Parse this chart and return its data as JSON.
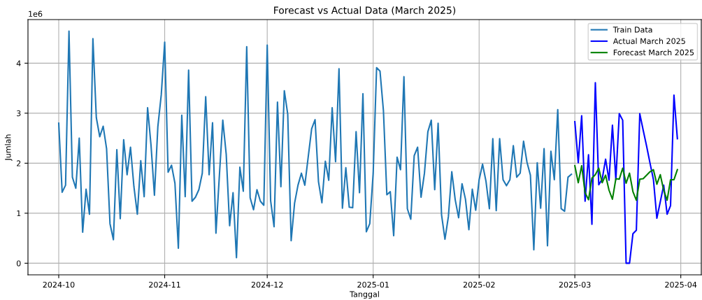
{
  "chart_data": {
    "type": "line",
    "title": "Forecast vs Actual Data (March 2025)",
    "xlabel": "Tanggal",
    "ylabel": "Jumlah",
    "annotations": [
      "1e6"
    ],
    "xlim": [
      "2024-09-22",
      "2025-04-07"
    ],
    "xticks": [
      {
        "value": "2024-10-01",
        "label": "2024-10"
      },
      {
        "value": "2024-11-01",
        "label": "2024-11"
      },
      {
        "value": "2024-12-01",
        "label": "2024-12"
      },
      {
        "value": "2025-01-01",
        "label": "2025-01"
      },
      {
        "value": "2025-02-01",
        "label": "2025-02"
      },
      {
        "value": "2025-03-01",
        "label": "2025-03"
      },
      {
        "value": "2025-04-01",
        "label": "2025-04"
      }
    ],
    "ylim": [
      -0.232,
      4.872
    ],
    "yticks": [
      0,
      1,
      2,
      3,
      4
    ],
    "grid": true,
    "legend": "top right",
    "series": [
      {
        "name": "Train Data",
        "color": "#1f77b4",
        "x": [
          "2024-10-01",
          "2024-10-02",
          "2024-10-03",
          "2024-10-04",
          "2024-10-05",
          "2024-10-06",
          "2024-10-07",
          "2024-10-08",
          "2024-10-09",
          "2024-10-10",
          "2024-10-11",
          "2024-10-12",
          "2024-10-13",
          "2024-10-14",
          "2024-10-15",
          "2024-10-16",
          "2024-10-17",
          "2024-10-18",
          "2024-10-19",
          "2024-10-20",
          "2024-10-21",
          "2024-10-22",
          "2024-10-23",
          "2024-10-24",
          "2024-10-25",
          "2024-10-26",
          "2024-10-27",
          "2024-10-28",
          "2024-10-29",
          "2024-10-30",
          "2024-10-31",
          "2024-11-01",
          "2024-11-02",
          "2024-11-03",
          "2024-11-04",
          "2024-11-05",
          "2024-11-06",
          "2024-11-07",
          "2024-11-08",
          "2024-11-09",
          "2024-11-10",
          "2024-11-11",
          "2024-11-12",
          "2024-11-13",
          "2024-11-14",
          "2024-11-15",
          "2024-11-16",
          "2024-11-17",
          "2024-11-18",
          "2024-11-19",
          "2024-11-20",
          "2024-11-21",
          "2024-11-22",
          "2024-11-23",
          "2024-11-24",
          "2024-11-25",
          "2024-11-26",
          "2024-11-27",
          "2024-11-28",
          "2024-11-29",
          "2024-11-30",
          "2024-12-01",
          "2024-12-02",
          "2024-12-03",
          "2024-12-04",
          "2024-12-05",
          "2024-12-06",
          "2024-12-07",
          "2024-12-08",
          "2024-12-09",
          "2024-12-10",
          "2024-12-11",
          "2024-12-12",
          "2024-12-13",
          "2024-12-14",
          "2024-12-15",
          "2024-12-16",
          "2024-12-17",
          "2024-12-18",
          "2024-12-19",
          "2024-12-20",
          "2024-12-21",
          "2024-12-22",
          "2024-12-23",
          "2024-12-24",
          "2024-12-25",
          "2024-12-26",
          "2024-12-27",
          "2024-12-28",
          "2024-12-29",
          "2024-12-30",
          "2024-12-31",
          "2025-01-01",
          "2025-01-02",
          "2025-01-03",
          "2025-01-04",
          "2025-01-05",
          "2025-01-06",
          "2025-01-07",
          "2025-01-08",
          "2025-01-09",
          "2025-01-10",
          "2025-01-11",
          "2025-01-12",
          "2025-01-13",
          "2025-01-14",
          "2025-01-15",
          "2025-01-16",
          "2025-01-17",
          "2025-01-18",
          "2025-01-19",
          "2025-01-20",
          "2025-01-21",
          "2025-01-22",
          "2025-01-23",
          "2025-01-24",
          "2025-01-25",
          "2025-01-26",
          "2025-01-27",
          "2025-01-28",
          "2025-01-29",
          "2025-01-30",
          "2025-01-31",
          "2025-02-01",
          "2025-02-02",
          "2025-02-03",
          "2025-02-04",
          "2025-02-05",
          "2025-02-06",
          "2025-02-07",
          "2025-02-08",
          "2025-02-09",
          "2025-02-10",
          "2025-02-11",
          "2025-02-12",
          "2025-02-13",
          "2025-02-14",
          "2025-02-15",
          "2025-02-16",
          "2025-02-17",
          "2025-02-18",
          "2025-02-19",
          "2025-02-20",
          "2025-02-21",
          "2025-02-22",
          "2025-02-23",
          "2025-02-24",
          "2025-02-25",
          "2025-02-26",
          "2025-02-27",
          "2025-02-28"
        ],
        "values": [
          2.8,
          1.42,
          1.56,
          4.64,
          1.72,
          1.5,
          2.5,
          0.62,
          1.48,
          0.98,
          4.49,
          2.91,
          2.53,
          2.74,
          2.29,
          0.79,
          0.47,
          2.27,
          0.89,
          2.47,
          1.77,
          2.32,
          1.53,
          0.98,
          2.05,
          1.33,
          3.11,
          2.36,
          1.36,
          2.73,
          3.37,
          4.42,
          1.82,
          1.96,
          1.6,
          0.3,
          2.96,
          1.33,
          3.86,
          1.24,
          1.32,
          1.47,
          1.8,
          3.33,
          1.77,
          2.81,
          0.6,
          1.75,
          2.86,
          2.18,
          0.75,
          1.41,
          0.11,
          1.92,
          1.44,
          4.33,
          1.31,
          1.07,
          1.47,
          1.24,
          1.16,
          4.36,
          1.25,
          0.73,
          3.22,
          1.53,
          3.45,
          2.98,
          0.45,
          1.2,
          1.56,
          1.8,
          1.56,
          2.13,
          2.69,
          2.87,
          1.63,
          1.21,
          2.04,
          1.66,
          3.11,
          2.03,
          3.89,
          1.1,
          1.91,
          1.12,
          1.11,
          2.63,
          1.41,
          3.39,
          0.63,
          0.79,
          1.8,
          3.91,
          3.84,
          3.05,
          1.37,
          1.43,
          0.55,
          2.12,
          1.87,
          3.73,
          1.09,
          0.88,
          2.15,
          2.32,
          1.32,
          1.8,
          2.63,
          2.86,
          1.47,
          2.8,
          0.97,
          0.48,
          0.93,
          1.83,
          1.27,
          0.91,
          1.59,
          1.28,
          0.67,
          1.48,
          1.06,
          1.67,
          1.98,
          1.64,
          1.09,
          2.49,
          1.05,
          2.49,
          1.67,
          1.55,
          1.67,
          2.35,
          1.72,
          1.8,
          2.44,
          2.02,
          1.76,
          0.27,
          2.01,
          1.1,
          2.29,
          0.35,
          2.24,
          1.67,
          3.07,
          1.09,
          1.04,
          1.72,
          1.78
        ]
      },
      {
        "name": "Actual March 2025",
        "color": "#0000ff",
        "x": [
          "2025-03-01",
          "2025-03-02",
          "2025-03-03",
          "2025-03-04",
          "2025-03-05",
          "2025-03-06",
          "2025-03-07",
          "2025-03-08",
          "2025-03-09",
          "2025-03-10",
          "2025-03-11",
          "2025-03-12",
          "2025-03-13",
          "2025-03-14",
          "2025-03-15",
          "2025-03-16",
          "2025-03-17",
          "2025-03-18",
          "2025-03-19",
          "2025-03-20",
          "2025-03-21",
          "2025-03-22",
          "2025-03-23",
          "2025-03-24",
          "2025-03-25",
          "2025-03-26",
          "2025-03-27",
          "2025-03-28",
          "2025-03-29",
          "2025-03-30",
          "2025-03-31"
        ],
        "values": [
          2.83,
          2.01,
          2.95,
          1.24,
          2.17,
          0.78,
          3.61,
          1.57,
          1.68,
          2.08,
          1.66,
          2.76,
          1.67,
          2.99,
          2.86,
          0,
          0,
          0.59,
          0.66,
          2.99,
          2.66,
          2.34,
          2.0,
          1.67,
          0.9,
          1.23,
          1.56,
          0.98,
          1.15,
          3.36,
          2.49
        ]
      },
      {
        "name": "Forecast March 2025",
        "color": "#008000",
        "x": [
          "2025-03-01",
          "2025-03-02",
          "2025-03-03",
          "2025-03-04",
          "2025-03-05",
          "2025-03-06",
          "2025-03-07",
          "2025-03-08",
          "2025-03-09",
          "2025-03-10",
          "2025-03-11",
          "2025-03-12",
          "2025-03-13",
          "2025-03-14",
          "2025-03-15",
          "2025-03-16",
          "2025-03-17",
          "2025-03-18",
          "2025-03-19",
          "2025-03-20",
          "2025-03-21",
          "2025-03-22",
          "2025-03-23",
          "2025-03-24",
          "2025-03-25",
          "2025-03-26",
          "2025-03-27",
          "2025-03-28",
          "2025-03-29",
          "2025-03-30",
          "2025-03-31"
        ],
        "values": [
          1.95,
          1.61,
          1.95,
          1.41,
          1.27,
          1.7,
          1.77,
          1.9,
          1.61,
          1.76,
          1.46,
          1.28,
          1.69,
          1.68,
          1.9,
          1.6,
          1.8,
          1.43,
          1.26,
          1.68,
          1.69,
          1.76,
          1.83,
          1.87,
          1.58,
          1.77,
          1.46,
          1.26,
          1.67,
          1.67,
          1.87
        ]
      }
    ]
  }
}
